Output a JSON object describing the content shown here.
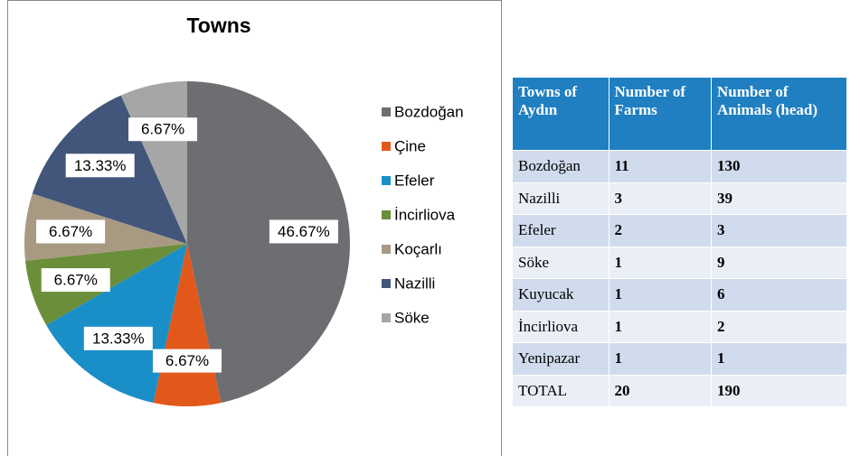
{
  "chart_data": {
    "type": "pie",
    "title": "Towns",
    "categories": [
      "Bozdoğan",
      "Çine",
      "Efeler",
      "İncirliova",
      "Koçarlı",
      "Nazilli",
      "Söke"
    ],
    "values": [
      46.67,
      6.67,
      13.33,
      6.67,
      6.67,
      13.33,
      6.67
    ],
    "value_labels": [
      "46.67%",
      "6.67%",
      "13.33%",
      "6.67%",
      "6.67%",
      "13.33%",
      "6.67%"
    ],
    "colors": [
      "#6d6e71",
      "#e2581b",
      "#1a8fc7",
      "#6b8e3a",
      "#a89a82",
      "#41567a",
      "#a6a6a6"
    ],
    "legend": "right"
  },
  "table": {
    "header": [
      "Towns of Aydın",
      "Number of Farms",
      "Number of Animals (head)"
    ],
    "rows": [
      [
        "Bozdoğan",
        11,
        130
      ],
      [
        "Nazilli",
        3,
        39
      ],
      [
        "Efeler",
        2,
        3
      ],
      [
        "Söke",
        1,
        9
      ],
      [
        "Kuyucak",
        1,
        6
      ],
      [
        "İncirliova",
        1,
        2
      ],
      [
        "Yenipazar",
        1,
        1
      ],
      [
        "TOTAL",
        20,
        190
      ]
    ]
  }
}
